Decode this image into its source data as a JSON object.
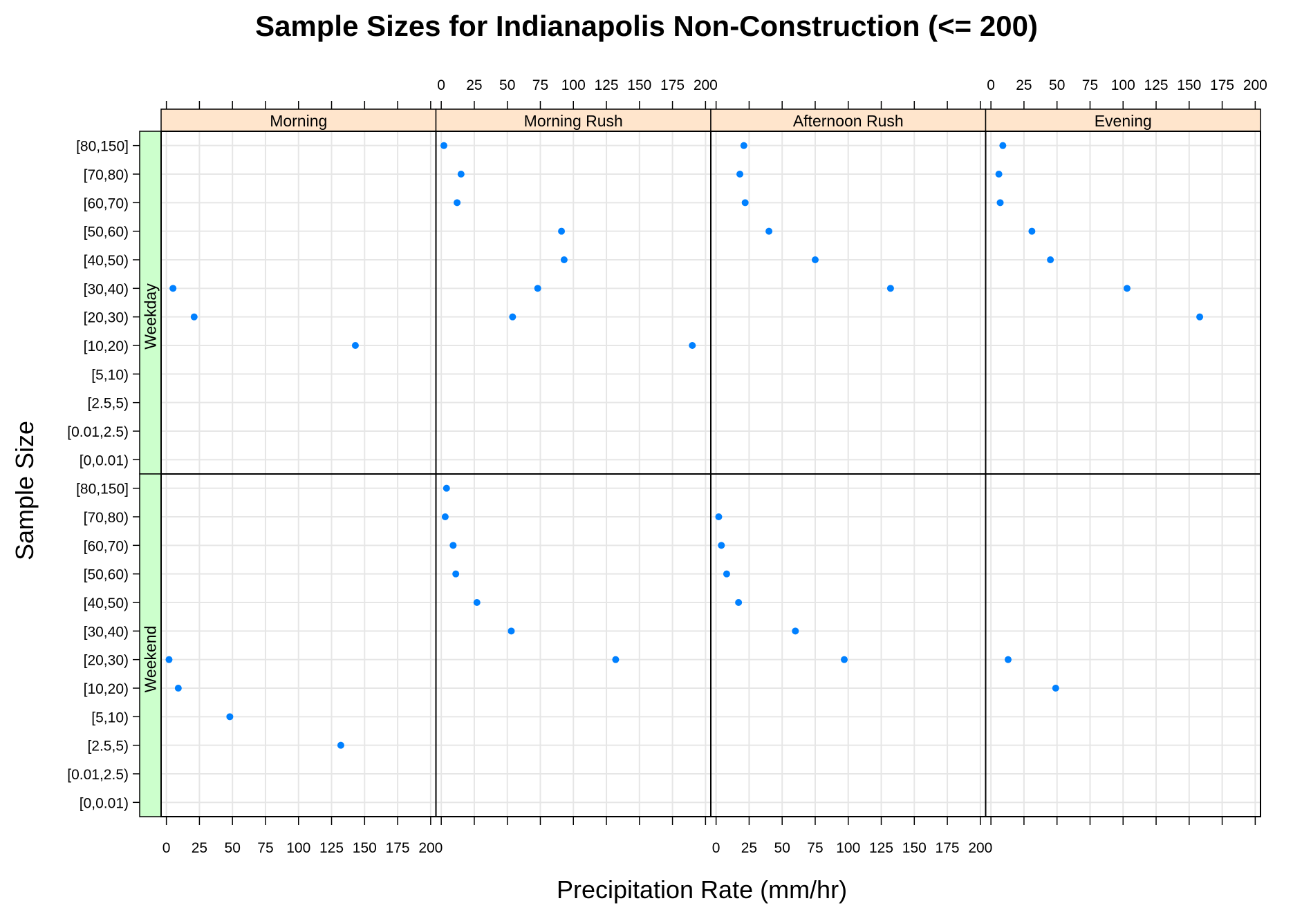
{
  "chart_data": {
    "type": "scatter",
    "title": "Sample Sizes for Indianapolis Non-Construction (<= 200)",
    "xlabel": "Precipitation Rate (mm/hr)",
    "ylabel": "Sample Size",
    "xlim": [
      0,
      200
    ],
    "x_ticks": [
      "0",
      "25",
      "50",
      "75",
      "100",
      "125",
      "150",
      "175",
      "200"
    ],
    "categories": [
      "[0,0.01)",
      "[0.01,2.5)",
      "[2.5,5)",
      "[5,10)",
      "[10,20)",
      "[20,30)",
      "[30,40)",
      "[40,50)",
      "[50,60)",
      "[60,70)",
      "[70,80)",
      "[80,150]"
    ],
    "columns": [
      "Morning",
      "Morning Rush",
      "Afternoon Rush",
      "Evening"
    ],
    "rows": [
      "Weekday",
      "Weekend"
    ],
    "grid": true,
    "strip_colors": {
      "column": "#ffe5cc",
      "row": "#ccffcc"
    },
    "point_color": "#0080ff",
    "panels": [
      {
        "row": "Weekday",
        "column": "Morning",
        "points": [
          {
            "category": "[30,40)",
            "x": 5
          },
          {
            "category": "[20,30)",
            "x": 21
          },
          {
            "category": "[10,20)",
            "x": 143
          }
        ]
      },
      {
        "row": "Weekday",
        "column": "Morning Rush",
        "points": [
          {
            "category": "[80,150]",
            "x": 2
          },
          {
            "category": "[70,80)",
            "x": 15
          },
          {
            "category": "[60,70)",
            "x": 12
          },
          {
            "category": "[50,60)",
            "x": 91
          },
          {
            "category": "[40,50)",
            "x": 93
          },
          {
            "category": "[30,40)",
            "x": 73
          },
          {
            "category": "[20,30)",
            "x": 54
          },
          {
            "category": "[10,20)",
            "x": 190
          }
        ]
      },
      {
        "row": "Weekday",
        "column": "Afternoon Rush",
        "points": [
          {
            "category": "[80,150]",
            "x": 21
          },
          {
            "category": "[70,80)",
            "x": 18
          },
          {
            "category": "[60,70)",
            "x": 22
          },
          {
            "category": "[50,60)",
            "x": 40
          },
          {
            "category": "[40,50)",
            "x": 75
          },
          {
            "category": "[30,40)",
            "x": 132
          }
        ]
      },
      {
        "row": "Weekday",
        "column": "Evening",
        "points": [
          {
            "category": "[80,150]",
            "x": 9
          },
          {
            "category": "[70,80)",
            "x": 6
          },
          {
            "category": "[60,70)",
            "x": 7
          },
          {
            "category": "[50,60)",
            "x": 31
          },
          {
            "category": "[40,50)",
            "x": 45
          },
          {
            "category": "[30,40)",
            "x": 103
          },
          {
            "category": "[20,30)",
            "x": 158
          }
        ]
      },
      {
        "row": "Weekend",
        "column": "Morning",
        "points": [
          {
            "category": "[20,30)",
            "x": 2
          },
          {
            "category": "[10,20)",
            "x": 9
          },
          {
            "category": "[5,10)",
            "x": 48
          },
          {
            "category": "[2.5,5)",
            "x": 132
          }
        ]
      },
      {
        "row": "Weekend",
        "column": "Morning Rush",
        "points": [
          {
            "category": "[80,150]",
            "x": 4
          },
          {
            "category": "[70,80)",
            "x": 3
          },
          {
            "category": "[60,70)",
            "x": 9
          },
          {
            "category": "[50,60)",
            "x": 11
          },
          {
            "category": "[40,50)",
            "x": 27
          },
          {
            "category": "[30,40)",
            "x": 53
          },
          {
            "category": "[20,30)",
            "x": 132
          }
        ]
      },
      {
        "row": "Weekend",
        "column": "Afternoon Rush",
        "points": [
          {
            "category": "[70,80)",
            "x": 2
          },
          {
            "category": "[60,70)",
            "x": 4
          },
          {
            "category": "[50,60)",
            "x": 8
          },
          {
            "category": "[40,50)",
            "x": 17
          },
          {
            "category": "[30,40)",
            "x": 60
          },
          {
            "category": "[20,30)",
            "x": 97
          }
        ]
      },
      {
        "row": "Weekend",
        "column": "Evening",
        "points": [
          {
            "category": "[20,30)",
            "x": 13
          },
          {
            "category": "[10,20)",
            "x": 49
          }
        ]
      }
    ]
  }
}
